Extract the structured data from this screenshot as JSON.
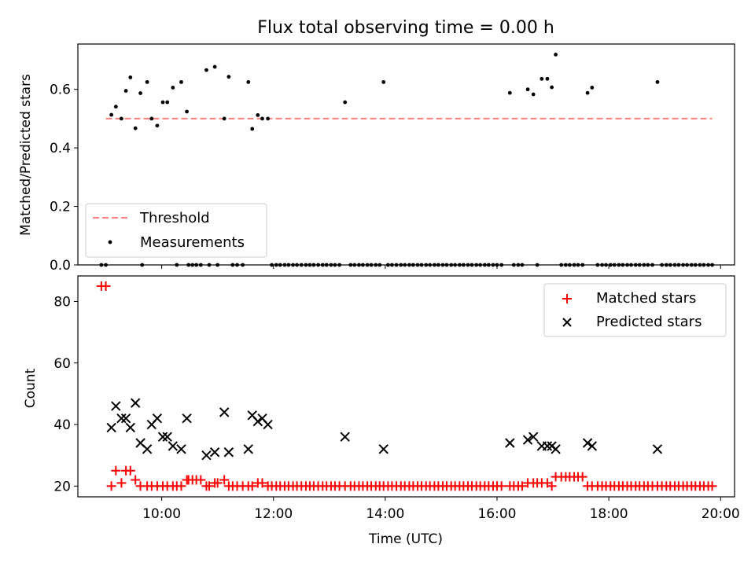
{
  "chart_data": [
    {
      "type": "scatter",
      "title": "Flux total observing time = 0.00 h",
      "xlabel": "",
      "ylabel": "Matched/Predicted stars",
      "xlim": [
        8.5,
        20.25
      ],
      "ylim": [
        0,
        0.755
      ],
      "yticks": [
        0.0,
        0.2,
        0.4,
        0.6
      ],
      "ytick_labels": [
        "0.0",
        "0.2",
        "0.4",
        "0.6"
      ],
      "grid": false,
      "legend": {
        "position": "lower-left",
        "entries": [
          "Threshold",
          "Measurements"
        ]
      },
      "threshold": {
        "name": "Threshold",
        "y": 0.5,
        "x": [
          9.0,
          19.85
        ],
        "color": "#ff7f7f"
      },
      "series": [
        {
          "name": "Measurements",
          "color": "#000000",
          "x": [
            9.1,
            9.18,
            9.28,
            9.36,
            9.44,
            9.53,
            9.62,
            9.74,
            9.82,
            9.92,
            10.02,
            10.1,
            10.2,
            10.35,
            10.45,
            10.8,
            10.95,
            11.12,
            11.2,
            11.55,
            11.62,
            11.72,
            11.8,
            11.9,
            13.28,
            13.97,
            16.23,
            16.55,
            16.65,
            16.8,
            16.9,
            16.98,
            17.05,
            17.62,
            17.7,
            18.87
          ],
          "y": [
            0.513,
            0.541,
            0.5,
            0.595,
            0.641,
            0.467,
            0.587,
            0.625,
            0.5,
            0.476,
            0.556,
            0.556,
            0.606,
            0.625,
            0.524,
            0.666,
            0.677,
            0.5,
            0.643,
            0.625,
            0.465,
            0.512,
            0.5,
            0.5,
            0.556,
            0.625,
            0.588,
            0.6,
            0.583,
            0.636,
            0.636,
            0.607,
            0.719,
            0.588,
            0.606,
            0.625
          ]
        },
        {
          "name": "Measurements (zero)",
          "color": "#000000",
          "y_constant": 0.0,
          "x": [
            8.92,
            9.0,
            9.65,
            10.27,
            10.48,
            10.55,
            10.62,
            10.7,
            10.85,
            11.0,
            11.27,
            11.35,
            11.45,
            11.97,
            12.05,
            12.12,
            12.2,
            12.27,
            12.35,
            12.42,
            12.5,
            12.58,
            12.65,
            12.72,
            12.8,
            12.88,
            12.95,
            13.03,
            13.1,
            13.18,
            13.38,
            13.45,
            13.53,
            13.6,
            13.68,
            13.75,
            13.83,
            13.9,
            14.05,
            14.12,
            14.2,
            14.28,
            14.35,
            14.43,
            14.5,
            14.58,
            14.65,
            14.73,
            14.8,
            14.88,
            14.95,
            15.03,
            15.1,
            15.18,
            15.25,
            15.33,
            15.4,
            15.48,
            15.55,
            15.63,
            15.7,
            15.78,
            15.85,
            15.93,
            16.0,
            16.08,
            16.3,
            16.38,
            16.45,
            16.72,
            17.15,
            17.23,
            17.3,
            17.38,
            17.45,
            17.53,
            17.8,
            17.88,
            17.95,
            18.03,
            18.1,
            18.18,
            18.25,
            18.33,
            18.4,
            18.48,
            18.55,
            18.63,
            18.7,
            18.78,
            18.95,
            19.03,
            19.1,
            19.18,
            19.25,
            19.33,
            19.4,
            19.48,
            19.55,
            19.63,
            19.7,
            19.78,
            19.85
          ]
        }
      ]
    },
    {
      "type": "scatter",
      "title": "",
      "xlabel": "Time (UTC)",
      "ylabel": "Count",
      "xlim": [
        8.5,
        20.25
      ],
      "ylim": [
        16.5,
        88.3
      ],
      "yticks": [
        20,
        40,
        60,
        80
      ],
      "ytick_labels": [
        "20",
        "40",
        "60",
        "80"
      ],
      "xticks": [
        10,
        12,
        14,
        16,
        18,
        20
      ],
      "xtick_labels": [
        "10:00",
        "12:00",
        "14:00",
        "16:00",
        "18:00",
        "20:00"
      ],
      "grid": false,
      "legend": {
        "position": "top-right",
        "entries": [
          "Matched stars",
          "Predicted stars"
        ]
      },
      "series": [
        {
          "name": "Matched stars",
          "marker": "+",
          "color": "#ff0000",
          "x": [
            8.92,
            9.0,
            9.1,
            9.18,
            9.28,
            9.36,
            9.44,
            9.53,
            9.62,
            9.74,
            9.82,
            9.92,
            10.02,
            10.1,
            10.2,
            10.27,
            10.35,
            10.45,
            10.48,
            10.55,
            10.62,
            10.7,
            10.8,
            10.85,
            10.95,
            11.0,
            11.12,
            11.2,
            11.27,
            11.35,
            11.45,
            11.55,
            11.62,
            11.72,
            11.8,
            11.9,
            11.97,
            12.05,
            12.12,
            12.2,
            12.27,
            12.35,
            12.42,
            12.5,
            12.58,
            12.65,
            12.72,
            12.8,
            12.88,
            12.95,
            13.03,
            13.1,
            13.18,
            13.28,
            13.38,
            13.45,
            13.53,
            13.6,
            13.68,
            13.75,
            13.83,
            13.9,
            13.97,
            14.05,
            14.12,
            14.2,
            14.28,
            14.35,
            14.43,
            14.5,
            14.58,
            14.65,
            14.73,
            14.8,
            14.88,
            14.95,
            15.03,
            15.1,
            15.18,
            15.25,
            15.33,
            15.4,
            15.48,
            15.55,
            15.63,
            15.7,
            15.78,
            15.85,
            15.93,
            16.0,
            16.08,
            16.23,
            16.3,
            16.38,
            16.45,
            16.55,
            16.65,
            16.72,
            16.8,
            16.9,
            16.98,
            17.05,
            17.15,
            17.23,
            17.3,
            17.38,
            17.45,
            17.53,
            17.62,
            17.7,
            17.8,
            17.88,
            17.95,
            18.03,
            18.1,
            18.18,
            18.25,
            18.33,
            18.4,
            18.48,
            18.55,
            18.63,
            18.7,
            18.78,
            18.87,
            18.95,
            19.03,
            19.1,
            19.18,
            19.25,
            19.33,
            19.4,
            19.48,
            19.55,
            19.63,
            19.7,
            19.78,
            19.85
          ],
          "y": [
            85,
            85,
            20,
            25,
            21,
            25,
            25,
            22,
            20,
            20,
            20,
            20,
            20,
            20,
            20,
            20,
            20,
            22,
            22,
            22,
            22,
            22,
            20,
            20,
            21,
            21,
            22,
            20,
            20,
            20,
            20,
            20,
            20,
            21,
            21,
            20,
            20,
            20,
            20,
            20,
            20,
            20,
            20,
            20,
            20,
            20,
            20,
            20,
            20,
            20,
            20,
            20,
            20,
            20,
            20,
            20,
            20,
            20,
            20,
            20,
            20,
            20,
            20,
            20,
            20,
            20,
            20,
            20,
            20,
            20,
            20,
            20,
            20,
            20,
            20,
            20,
            20,
            20,
            20,
            20,
            20,
            20,
            20,
            20,
            20,
            20,
            20,
            20,
            20,
            20,
            20,
            20,
            20,
            20,
            20,
            21,
            21,
            21,
            21,
            21,
            20,
            23,
            23,
            23,
            23,
            23,
            23,
            23,
            20,
            20,
            20,
            20,
            20,
            20,
            20,
            20,
            20,
            20,
            20,
            20,
            20,
            20,
            20,
            20,
            20,
            20,
            20,
            20,
            20,
            20,
            20,
            20,
            20,
            20,
            20,
            20,
            20,
            20
          ]
        },
        {
          "name": "Predicted stars",
          "marker": "x",
          "color": "#000000",
          "x": [
            9.1,
            9.18,
            9.28,
            9.36,
            9.44,
            9.53,
            9.62,
            9.74,
            9.82,
            9.92,
            10.02,
            10.1,
            10.2,
            10.35,
            10.45,
            10.8,
            10.95,
            11.12,
            11.2,
            11.55,
            11.62,
            11.72,
            11.8,
            11.9,
            13.28,
            13.97,
            16.23,
            16.55,
            16.65,
            16.8,
            16.9,
            16.98,
            17.05,
            17.62,
            17.7,
            18.87
          ],
          "y": [
            39,
            46,
            42,
            42,
            39,
            47,
            34,
            32,
            40,
            42,
            36,
            36,
            33,
            32,
            42,
            30,
            31,
            44,
            31,
            32,
            43,
            41,
            42,
            40,
            36,
            32,
            34,
            35,
            36,
            33,
            33,
            33,
            32,
            34,
            33,
            32
          ]
        }
      ]
    }
  ]
}
